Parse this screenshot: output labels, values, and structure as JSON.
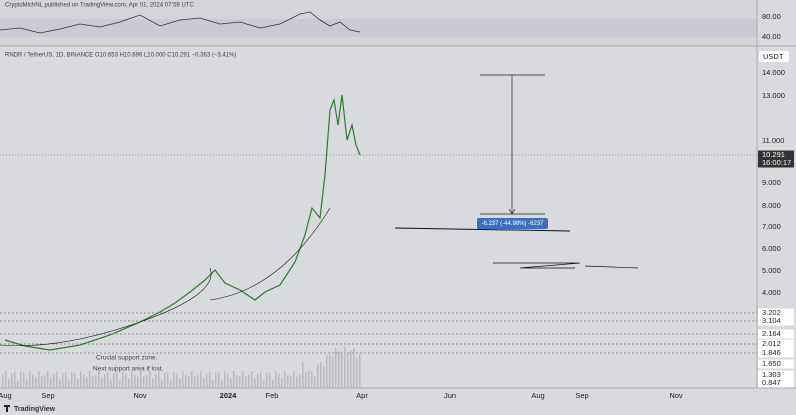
{
  "header": {
    "published": "CryptoMichNL published on TradingView.com, Apr 01, 2024 07:59 UTC",
    "symbol": "RNDR / TetherUS, 1D, BINANCE  O10.653 H10.696 L10.000 C10.291 −0.363 (−3.41%)",
    "currency": "USDT"
  },
  "rsi_axis": [
    "80.00",
    "40.00"
  ],
  "price_axis": [
    "14.000",
    "13.000",
    "11.000",
    "10.291",
    "16:00:17",
    "9.000",
    "8.000",
    "7.000",
    "6.000",
    "5.000",
    "4.000",
    "3.202",
    "3.104",
    "2.164",
    "2.012",
    "1.846",
    "1.650",
    "1.303",
    "0.847"
  ],
  "time_axis": [
    "Aug",
    "Sep",
    "Nov",
    "2024",
    "Feb",
    "Apr",
    "Jun",
    "Aug",
    "Sep",
    "Nov"
  ],
  "annotations": {
    "measure": "-6.237 (-44.98%) -6237",
    "support": "Crucial support zone.",
    "next": "Next support area if lost."
  },
  "footer": {
    "logo": "TradingView"
  }
}
